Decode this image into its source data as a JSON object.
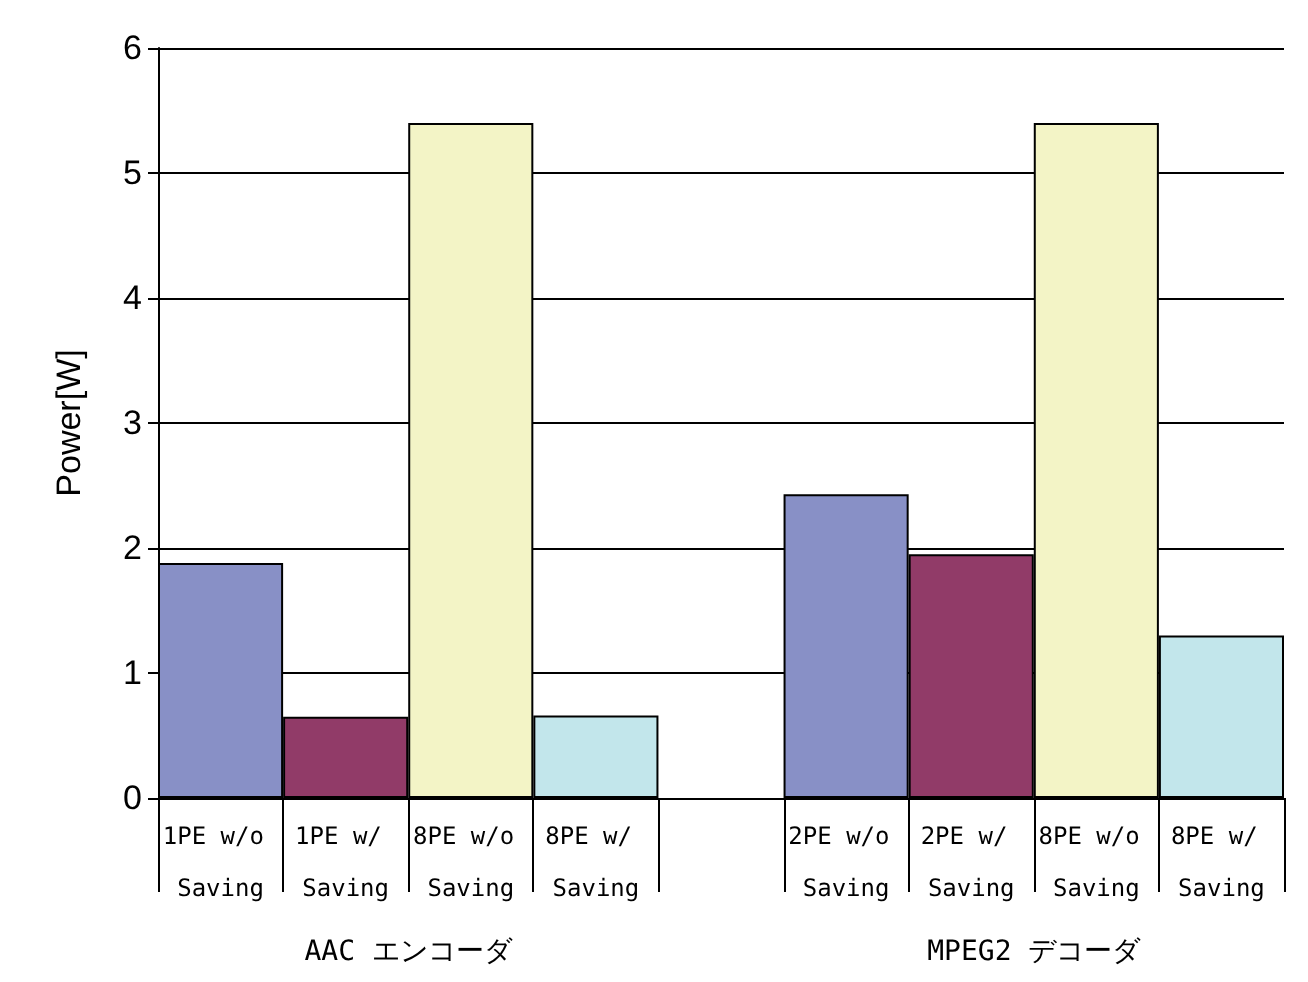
{
  "chart_data": {
    "type": "bar",
    "ylabel": "Power[W]",
    "categories": [
      "1PE w/o Saving",
      "1PE w/ Saving",
      "8PE w/o Saving",
      "8PE w/ Saving",
      null,
      "2PE w/o Saving",
      "2PE w/ Saving",
      "8PE w/o Saving",
      "8PE w/ Saving"
    ],
    "values": [
      1.88,
      0.65,
      5.4,
      0.66,
      null,
      2.43,
      1.95,
      5.4,
      1.3
    ],
    "colors": [
      "#8890c6",
      "#913b68",
      "#f3f4c6",
      "#c2e6eb",
      "#ffffff",
      "#8890c6",
      "#913b68",
      "#f3f4c6",
      "#c2e6eb"
    ],
    "ylim": [
      0,
      6
    ],
    "yticks": [
      0,
      1,
      2,
      3,
      4,
      5,
      6
    ],
    "grid": "y",
    "annotations": [
      "AAC エンコーダ",
      "MPEG2 デコーダ"
    ]
  }
}
